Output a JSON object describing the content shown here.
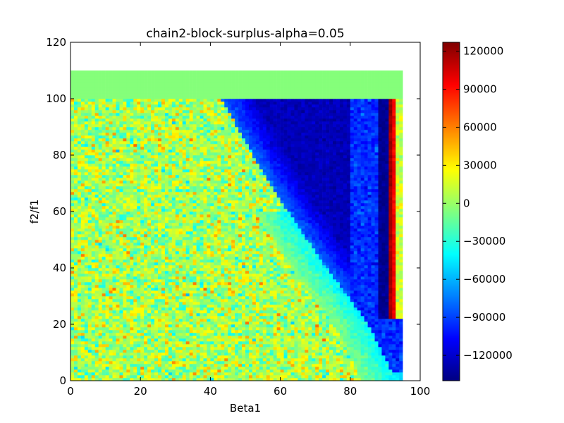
{
  "chart_data": {
    "type": "heatmap",
    "title": "chain2-block-surplus-alpha=0.05",
    "xlabel": "Beta1",
    "ylabel": "f2/f1",
    "xlim": [
      0,
      100
    ],
    "ylim": [
      0,
      120
    ],
    "x_ticks": [
      0,
      20,
      40,
      60,
      80,
      100
    ],
    "y_ticks": [
      0,
      20,
      40,
      60,
      80,
      100,
      120
    ],
    "colormap": "jet",
    "colorbar": {
      "vmin": -140000,
      "vmax": 127000,
      "ticks": [
        120000,
        90000,
        60000,
        30000,
        0,
        -30000,
        -60000,
        -90000,
        -120000
      ],
      "tick_labels": [
        "120000",
        "90000",
        "60000",
        "30000",
        "0",
        "−30000",
        "−60000",
        "−90000",
        "−120000"
      ]
    },
    "grid": false,
    "data_region": {
      "x_extent": [
        0,
        95
      ],
      "y_extent": [
        0,
        110
      ],
      "cell_size": 1,
      "top_band": {
        "y_range": [
          100,
          110
        ],
        "value": -5000
      },
      "noise_region_value_mean": 5000,
      "noise_region_value_spread": 30000,
      "blue_wedge": {
        "boundary_points": [
          [
            43,
            100
          ],
          [
            52,
            80
          ],
          [
            62,
            60
          ],
          [
            73,
            40
          ],
          [
            85,
            20
          ],
          [
            93,
            0
          ]
        ],
        "value_left": -80000,
        "value_right": -125000
      },
      "dark_red_stripe": {
        "x": [
          91,
          92
        ],
        "y_range": [
          22,
          100
        ],
        "value": 118000
      },
      "bright_red_stripe": {
        "x": [
          92,
          93
        ],
        "y_range": [
          22,
          100
        ],
        "value": 96000
      },
      "dark_blue_stripe": {
        "x": [
          88,
          91
        ],
        "y_range": [
          22,
          100
        ],
        "value": -135000
      }
    }
  }
}
